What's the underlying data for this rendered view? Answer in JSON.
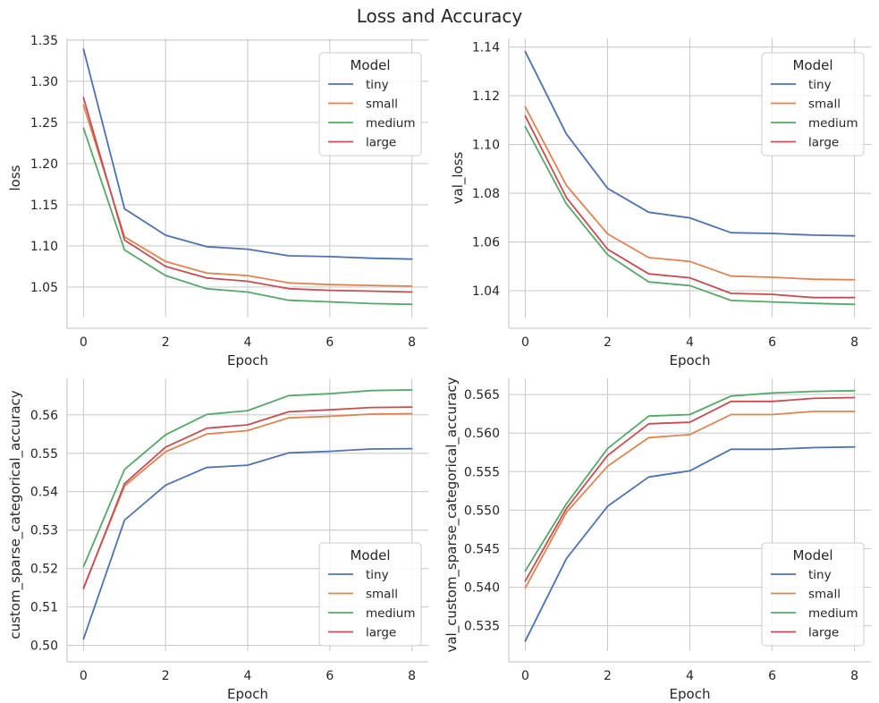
{
  "figure": {
    "title": "Loss and Accuracy",
    "colors": {
      "tiny": "#4c72b0",
      "small": "#dd8452",
      "medium": "#55a868",
      "large": "#c44e52",
      "grid": "#cccccc",
      "axis": "#cccccc"
    }
  },
  "chart_data": [
    {
      "type": "line",
      "title": "",
      "xlabel": "Epoch",
      "ylabel": "loss",
      "x": [
        0,
        1,
        2,
        3,
        4,
        5,
        6,
        7,
        8
      ],
      "xlim": [
        -0.4,
        8.4
      ],
      "ylim": [
        1.013,
        1.352
      ],
      "xticks": [
        0,
        2,
        4,
        6,
        8
      ],
      "yticks": [
        1.05,
        1.1,
        1.15,
        1.2,
        1.25,
        1.3,
        1.35
      ],
      "ytick_labels": [
        "1.05",
        "1.10",
        "1.15",
        "1.20",
        "1.25",
        "1.30",
        "1.35"
      ],
      "grid": true,
      "legend": {
        "title": "Model",
        "placement": "top-right"
      },
      "series": [
        {
          "name": "tiny",
          "color": "#4c72b0",
          "values": [
            1.339,
            1.145,
            1.113,
            1.099,
            1.096,
            1.088,
            1.087,
            1.085,
            1.084
          ]
        },
        {
          "name": "small",
          "color": "#dd8452",
          "values": [
            1.271,
            1.111,
            1.081,
            1.067,
            1.064,
            1.055,
            1.053,
            1.052,
            1.051
          ]
        },
        {
          "name": "medium",
          "color": "#55a868",
          "values": [
            1.243,
            1.095,
            1.064,
            1.048,
            1.044,
            1.034,
            1.032,
            1.03,
            1.029
          ]
        },
        {
          "name": "large",
          "color": "#c44e52",
          "values": [
            1.28,
            1.107,
            1.075,
            1.061,
            1.057,
            1.048,
            1.046,
            1.045,
            1.044
          ]
        }
      ]
    },
    {
      "type": "line",
      "title": "",
      "xlabel": "Epoch",
      "ylabel": "val_loss",
      "x": [
        0,
        1,
        2,
        3,
        4,
        5,
        6,
        7,
        8
      ],
      "xlim": [
        -0.4,
        8.4
      ],
      "ylim": [
        1.029,
        1.1435
      ],
      "xticks": [
        0,
        2,
        4,
        6,
        8
      ],
      "yticks": [
        1.04,
        1.06,
        1.08,
        1.1,
        1.12,
        1.14
      ],
      "ytick_labels": [
        "1.04",
        "1.06",
        "1.08",
        "1.10",
        "1.12",
        "1.14"
      ],
      "grid": true,
      "legend": {
        "title": "Model",
        "placement": "top-right"
      },
      "series": [
        {
          "name": "tiny",
          "color": "#4c72b0",
          "values": [
            1.1381,
            1.1043,
            1.082,
            1.0722,
            1.0699,
            1.0638,
            1.0635,
            1.0628,
            1.0625
          ]
        },
        {
          "name": "small",
          "color": "#dd8452",
          "values": [
            1.1154,
            1.0832,
            1.0633,
            1.0536,
            1.052,
            1.046,
            1.0455,
            1.0447,
            1.0445
          ]
        },
        {
          "name": "medium",
          "color": "#55a868",
          "values": [
            1.1073,
            1.0756,
            1.0548,
            1.0436,
            1.0421,
            1.036,
            1.0354,
            1.0348,
            1.0344
          ]
        },
        {
          "name": "large",
          "color": "#c44e52",
          "values": [
            1.1117,
            1.0782,
            1.057,
            1.0469,
            1.0453,
            1.0389,
            1.0385,
            1.0372,
            1.0372
          ]
        }
      ]
    },
    {
      "type": "line",
      "title": "",
      "xlabel": "Epoch",
      "ylabel": "custom_sparse_categorical_accuracy",
      "x": [
        0,
        1,
        2,
        3,
        4,
        5,
        6,
        7,
        8
      ],
      "xlim": [
        -0.4,
        8.4
      ],
      "ylim": [
        0.4985,
        0.5695
      ],
      "xticks": [
        0,
        2,
        4,
        6,
        8
      ],
      "yticks": [
        0.5,
        0.51,
        0.52,
        0.53,
        0.54,
        0.55,
        0.56
      ],
      "ytick_labels": [
        "0.50",
        "0.51",
        "0.52",
        "0.53",
        "0.54",
        "0.55",
        "0.56"
      ],
      "grid": true,
      "legend": {
        "title": "Model",
        "placement": "bottom-right"
      },
      "series": [
        {
          "name": "tiny",
          "color": "#4c72b0",
          "values": [
            0.5017,
            0.5326,
            0.5417,
            0.5463,
            0.5469,
            0.5501,
            0.5505,
            0.5511,
            0.5512
          ]
        },
        {
          "name": "small",
          "color": "#dd8452",
          "values": [
            0.515,
            0.5415,
            0.5504,
            0.555,
            0.5559,
            0.5592,
            0.5596,
            0.5602,
            0.5603
          ]
        },
        {
          "name": "medium",
          "color": "#55a868",
          "values": [
            0.5205,
            0.5458,
            0.5548,
            0.5601,
            0.5611,
            0.565,
            0.5655,
            0.5663,
            0.5665
          ]
        },
        {
          "name": "large",
          "color": "#c44e52",
          "values": [
            0.5148,
            0.5421,
            0.5516,
            0.5565,
            0.5574,
            0.5608,
            0.5613,
            0.5619,
            0.562
          ]
        }
      ]
    },
    {
      "type": "line",
      "title": "",
      "xlabel": "Epoch",
      "ylabel": "val_custom_sparse_categorical_accuracy",
      "x": [
        0,
        1,
        2,
        3,
        4,
        5,
        6,
        7,
        8
      ],
      "xlim": [
        -0.4,
        8.4
      ],
      "ylim": [
        0.5317,
        0.5671
      ],
      "xticks": [
        0,
        2,
        4,
        6,
        8
      ],
      "yticks": [
        0.535,
        0.54,
        0.545,
        0.55,
        0.555,
        0.56,
        0.565
      ],
      "ytick_labels": [
        "0.535",
        "0.540",
        "0.545",
        "0.550",
        "0.555",
        "0.560",
        "0.565"
      ],
      "grid": true,
      "legend": {
        "title": "Model",
        "placement": "bottom-right"
      },
      "series": [
        {
          "name": "tiny",
          "color": "#4c72b0",
          "values": [
            0.533,
            0.5437,
            0.5505,
            0.5543,
            0.5551,
            0.5579,
            0.5579,
            0.5581,
            0.5582
          ]
        },
        {
          "name": "small",
          "color": "#dd8452",
          "values": [
            0.5399,
            0.5497,
            0.5557,
            0.5594,
            0.5598,
            0.5624,
            0.5624,
            0.5628,
            0.5628
          ]
        },
        {
          "name": "medium",
          "color": "#55a868",
          "values": [
            0.5421,
            0.5508,
            0.558,
            0.5622,
            0.5624,
            0.5648,
            0.5652,
            0.5654,
            0.5655
          ]
        },
        {
          "name": "large",
          "color": "#c44e52",
          "values": [
            0.5408,
            0.5502,
            0.5571,
            0.5612,
            0.5614,
            0.5641,
            0.5641,
            0.5645,
            0.5646
          ]
        }
      ]
    }
  ]
}
